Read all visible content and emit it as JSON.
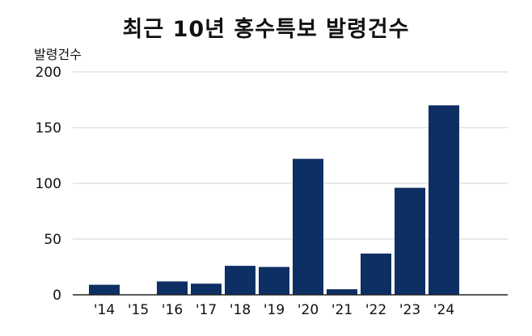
{
  "chart_data": {
    "type": "bar",
    "title": "최근 10년 홍수특보 발령건수",
    "ylabel": "발령건수",
    "xlabel": "",
    "categories": [
      "'14",
      "'15",
      "'16",
      "'17",
      "'18",
      "'19",
      "'20",
      "'21",
      "'22",
      "'23",
      "'24"
    ],
    "values": [
      9,
      0,
      12,
      10,
      26,
      25,
      122,
      5,
      37,
      96,
      170
    ],
    "ylim": [
      0,
      200
    ],
    "yticks": [
      0,
      50,
      100,
      150,
      200
    ],
    "grid": true,
    "bar_color": "#0d2f63",
    "grid_color": "#e2e2e2",
    "axis_color": "#222222"
  }
}
